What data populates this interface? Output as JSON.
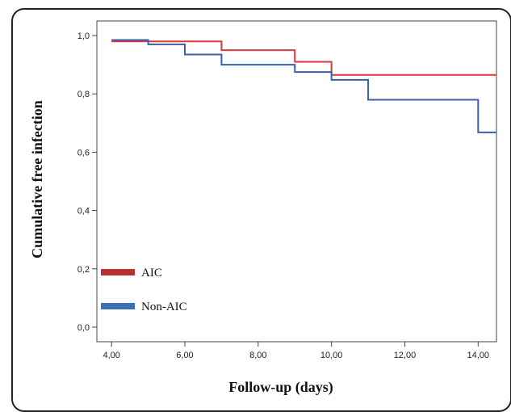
{
  "chart_data": {
    "type": "line",
    "xlabel": "Follow-up (days)",
    "ylabel": "Cumulative free infection",
    "xlim": [
      3.6,
      14.5
    ],
    "ylim": [
      -0.05,
      1.05
    ],
    "x_ticks": [
      "4,00",
      "6,00",
      "8,00",
      "10,00",
      "12,00",
      "14,00"
    ],
    "x_tick_values": [
      4,
      6,
      8,
      10,
      12,
      14
    ],
    "y_ticks": [
      "0,0",
      "0,2",
      "0,4",
      "0,6",
      "0,8",
      "1,0"
    ],
    "y_tick_values": [
      0,
      0.2,
      0.4,
      0.6,
      0.8,
      1.0
    ],
    "legend_placement": "lower-left",
    "series": [
      {
        "name": "AIC",
        "color": "#d63a3a",
        "legend_color": "#b8302f",
        "x": [
          4,
          7,
          9,
          10,
          14.5
        ],
        "y": [
          0.98,
          0.95,
          0.91,
          0.865,
          0.865
        ]
      },
      {
        "name": "Non-AIC",
        "color": "#3a5fae",
        "legend_color": "#3a6fb6",
        "x": [
          4,
          5,
          6,
          7,
          9,
          10,
          11,
          14,
          14.5
        ],
        "y": [
          0.985,
          0.97,
          0.935,
          0.9,
          0.875,
          0.848,
          0.78,
          0.668,
          0.668
        ]
      }
    ]
  }
}
